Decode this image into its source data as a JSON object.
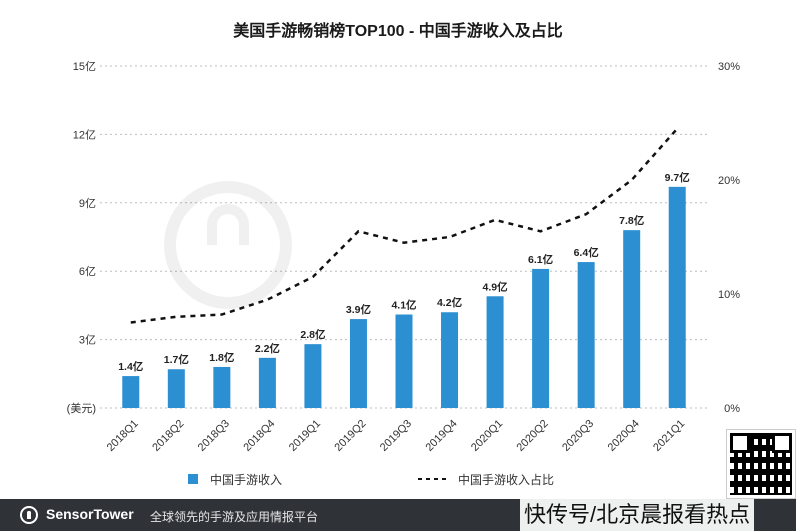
{
  "chart_data": {
    "type": "bar",
    "title": "美国手游畅销榜TOP100 - 中国手游收入及占比",
    "categories": [
      "2018Q1",
      "2018Q2",
      "2018Q3",
      "2018Q4",
      "2019Q1",
      "2019Q2",
      "2019Q3",
      "2019Q4",
      "2020Q1",
      "2020Q2",
      "2020Q3",
      "2020Q4",
      "2021Q1"
    ],
    "series": [
      {
        "name": "中国手游收入",
        "type": "bar",
        "axis": "left",
        "values": [
          1.4,
          1.7,
          1.8,
          2.2,
          2.8,
          3.9,
          4.1,
          4.2,
          4.9,
          6.1,
          6.4,
          7.8,
          9.7
        ],
        "labels": [
          "1.4亿",
          "1.7亿",
          "1.8亿",
          "2.2亿",
          "2.8亿",
          "3.9亿",
          "4.1亿",
          "4.2亿",
          "4.9亿",
          "6.1亿",
          "6.4亿",
          "7.8亿",
          "9.7亿"
        ],
        "color": "#2b8fd1"
      },
      {
        "name": "中国手游收入占比",
        "type": "line",
        "axis": "right",
        "style": "dashed",
        "values": [
          7.5,
          8.0,
          8.2,
          9.5,
          11.5,
          15.5,
          14.5,
          15.0,
          16.5,
          15.5,
          17.0,
          20.0,
          24.5
        ],
        "color": "#111111"
      }
    ],
    "left_axis": {
      "unit": "(美元)",
      "ylim": [
        0,
        15
      ],
      "ticks": [
        0,
        3,
        6,
        9,
        12,
        15
      ],
      "tick_labels": [
        "(美元)",
        "3亿",
        "6亿",
        "9亿",
        "12亿",
        "15亿"
      ]
    },
    "right_axis": {
      "ylim": [
        0,
        30
      ],
      "ticks": [
        0,
        10,
        20,
        30
      ],
      "tick_labels": [
        "0%",
        "10%",
        "20%",
        "30%"
      ]
    },
    "grid": "horizontal-dotted",
    "legend_position": "bottom"
  },
  "footer": {
    "brand": "SensorTower",
    "slogan": "全球领先的手游及应用情报平台",
    "watermark": "快传号/北京晨报看热点"
  },
  "colors": {
    "bar": "#2b8fd1",
    "line": "#111111",
    "footer_bg": "#2f3338"
  }
}
